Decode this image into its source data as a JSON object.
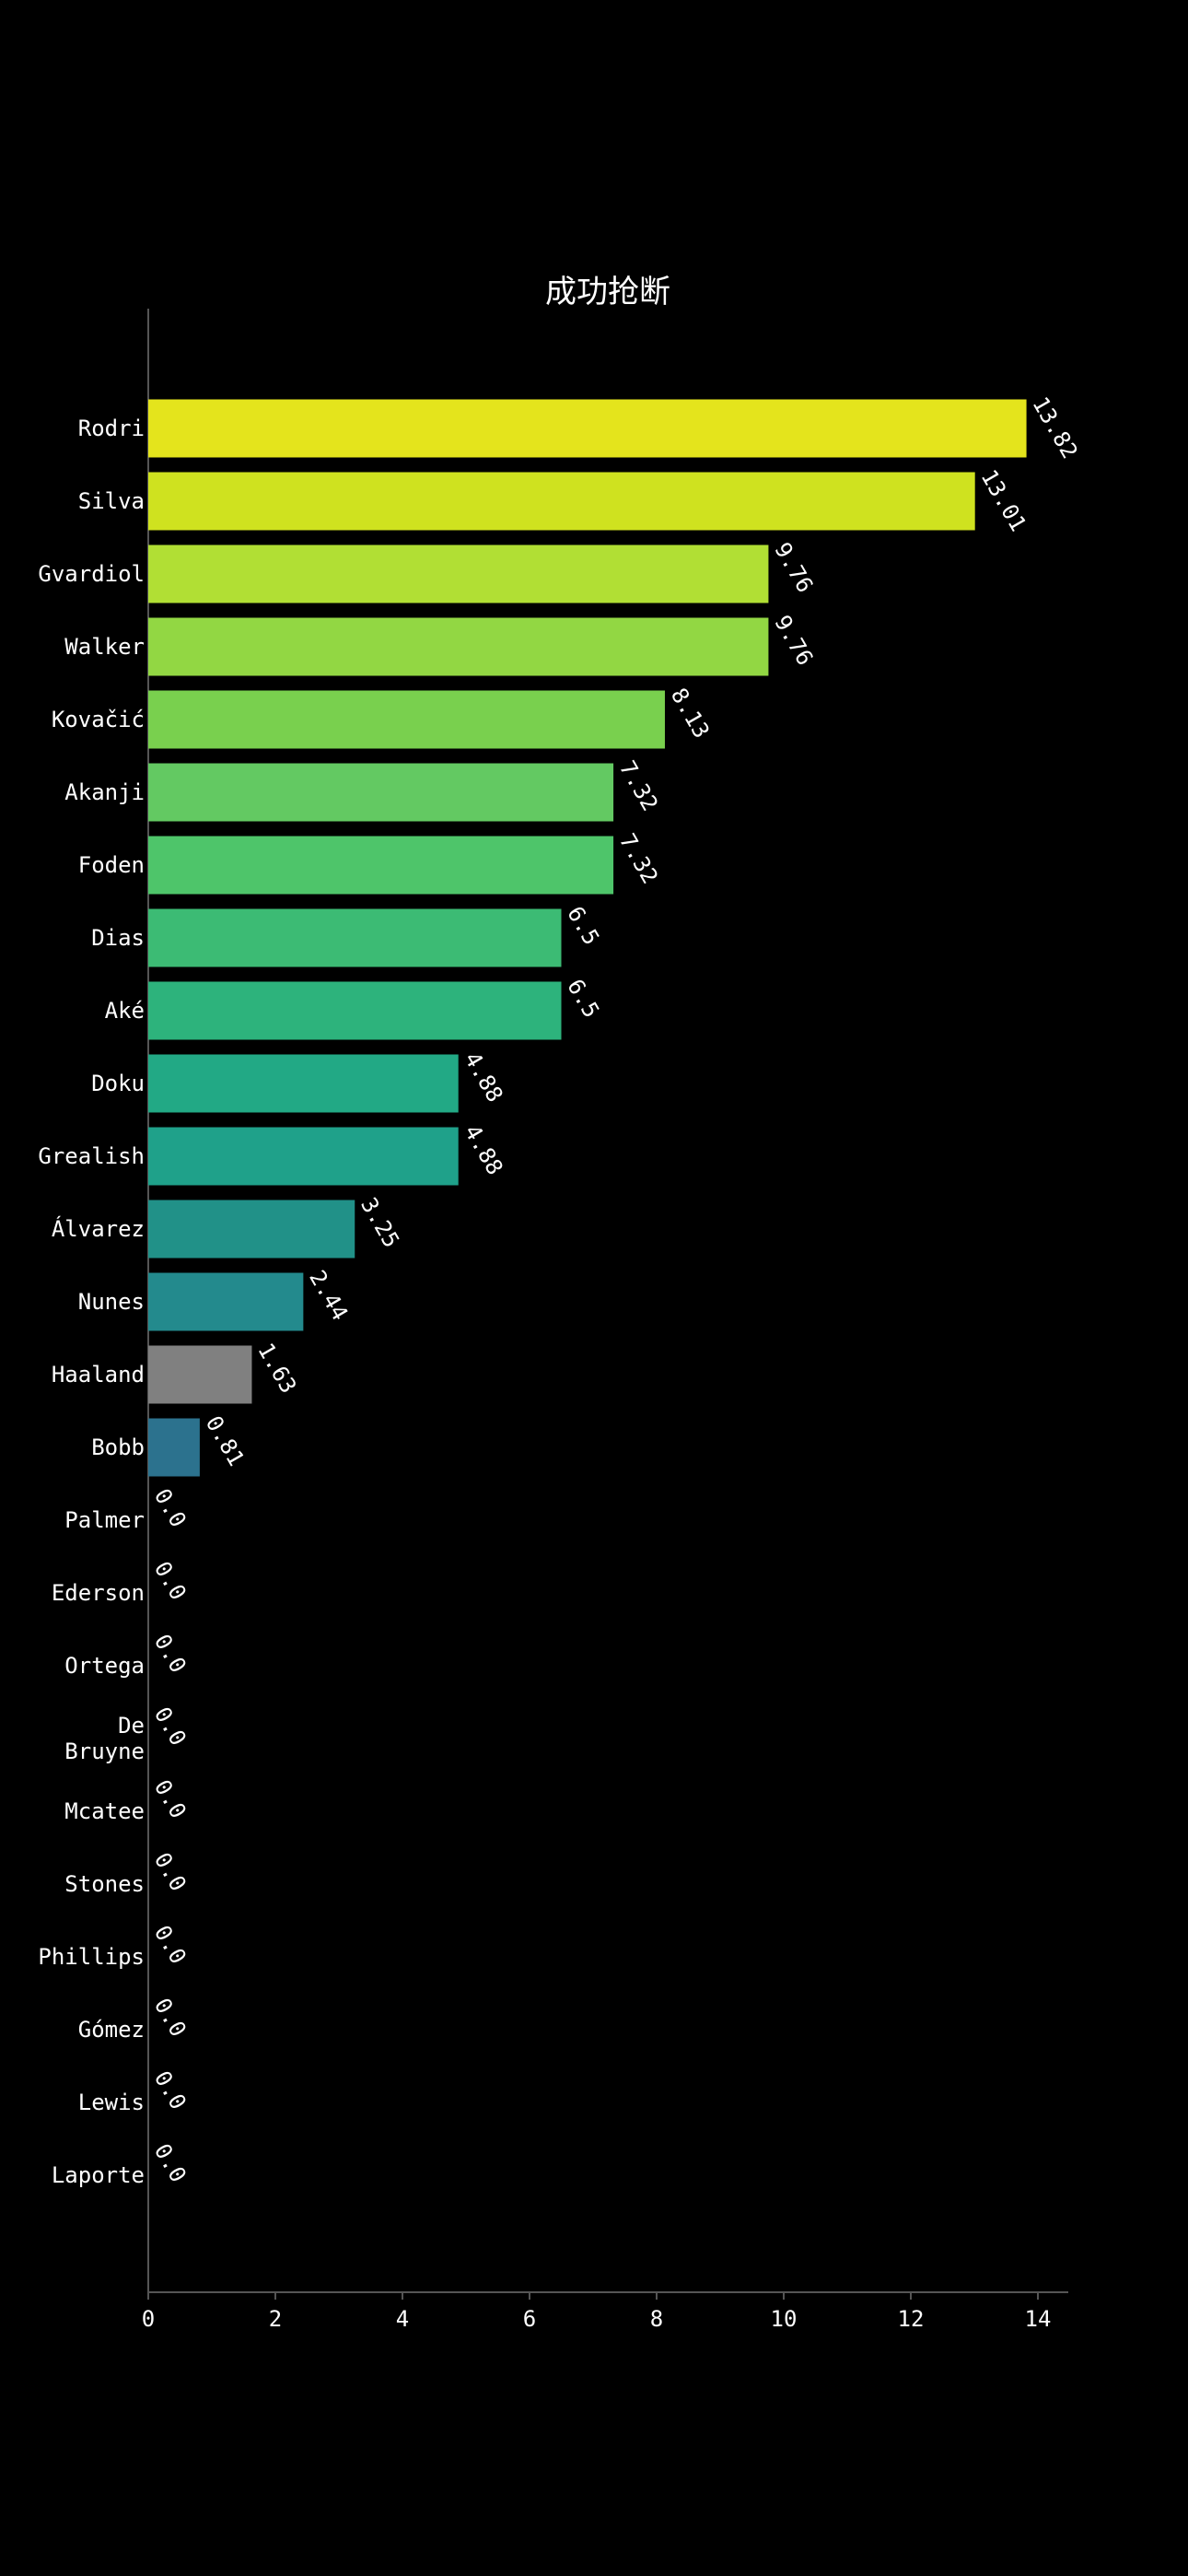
{
  "chart_data": {
    "type": "bar",
    "orientation": "horizontal",
    "title": "成功抢断",
    "xlabel": "",
    "ylabel": "",
    "xlim": [
      0,
      14.5
    ],
    "xticks": [
      "0",
      "2",
      "4",
      "6",
      "8",
      "10",
      "12",
      "14"
    ],
    "grid": false,
    "categories": [
      "Rodri",
      "Silva",
      "Gvardiol",
      "Walker",
      "Kovačić",
      "Akanji",
      "Foden",
      "Dias",
      "Aké",
      "Doku",
      "Grealish",
      "Álvarez",
      "Nunes",
      "Haaland",
      "Bobb",
      "Palmer",
      "Ederson",
      "Ortega",
      "De\nBruyne",
      "Mcatee",
      "Stones",
      "Phillips",
      "Gómez",
      "Lewis",
      "Laporte"
    ],
    "values": [
      13.82,
      13.01,
      9.76,
      9.76,
      8.13,
      7.32,
      7.32,
      6.5,
      6.5,
      4.88,
      4.88,
      3.25,
      2.44,
      1.63,
      0.81,
      0.0,
      0.0,
      0.0,
      0.0,
      0.0,
      0.0,
      0.0,
      0.0,
      0.0,
      0.0
    ],
    "value_labels": [
      "13.82",
      "13.01",
      "9.76",
      "9.76",
      "8.13",
      "7.32",
      "7.32",
      "6.5",
      "6.5",
      "4.88",
      "4.88",
      "3.25",
      "2.44",
      "1.63",
      "0.81",
      "0.0",
      "0.0",
      "0.0",
      "0.0",
      "0.0",
      "0.0",
      "0.0",
      "0.0",
      "0.0",
      "0.0"
    ],
    "colors": [
      "#e4e41c",
      "#cfe21f",
      "#b1df34",
      "#92d743",
      "#79d04e",
      "#63c962",
      "#4ec56a",
      "#3cbb74",
      "#2db37c",
      "#22a985",
      "#1fa18a",
      "#219188",
      "#238a8d",
      "#808080",
      "#2c728e"
    ],
    "colors_note_ignore": "",
    "background": "#000000",
    "axis_color": "#555555"
  }
}
